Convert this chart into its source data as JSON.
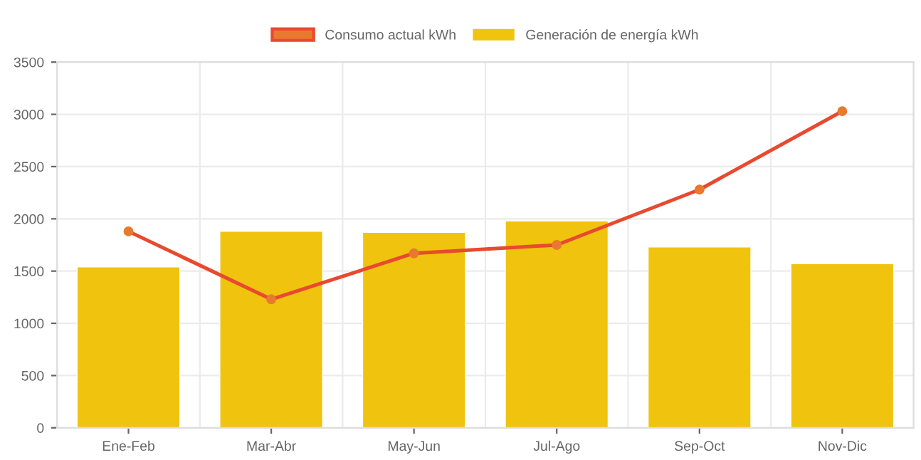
{
  "chart_data": {
    "type": "bar",
    "categories": [
      "Ene-Feb",
      "Mar-Abr",
      "May-Jun",
      "Jul-Ago",
      "Sep-Oct",
      "Nov-Dic"
    ],
    "series": [
      {
        "name": "Consumo actual kWh",
        "type": "line",
        "color": "#e8492f",
        "marker": "circle",
        "values": [
          1880,
          1230,
          1670,
          1750,
          2280,
          3030
        ]
      },
      {
        "name": "Generación de energía kWh",
        "color": "#f0c30f",
        "values": [
          1540,
          1880,
          1870,
          1980,
          1730,
          1570
        ]
      }
    ],
    "ylim": [
      0,
      3500
    ],
    "yticks": [
      0,
      500,
      1000,
      1500,
      2000,
      2500,
      3000,
      3500
    ],
    "grid": true,
    "legend": "top"
  }
}
